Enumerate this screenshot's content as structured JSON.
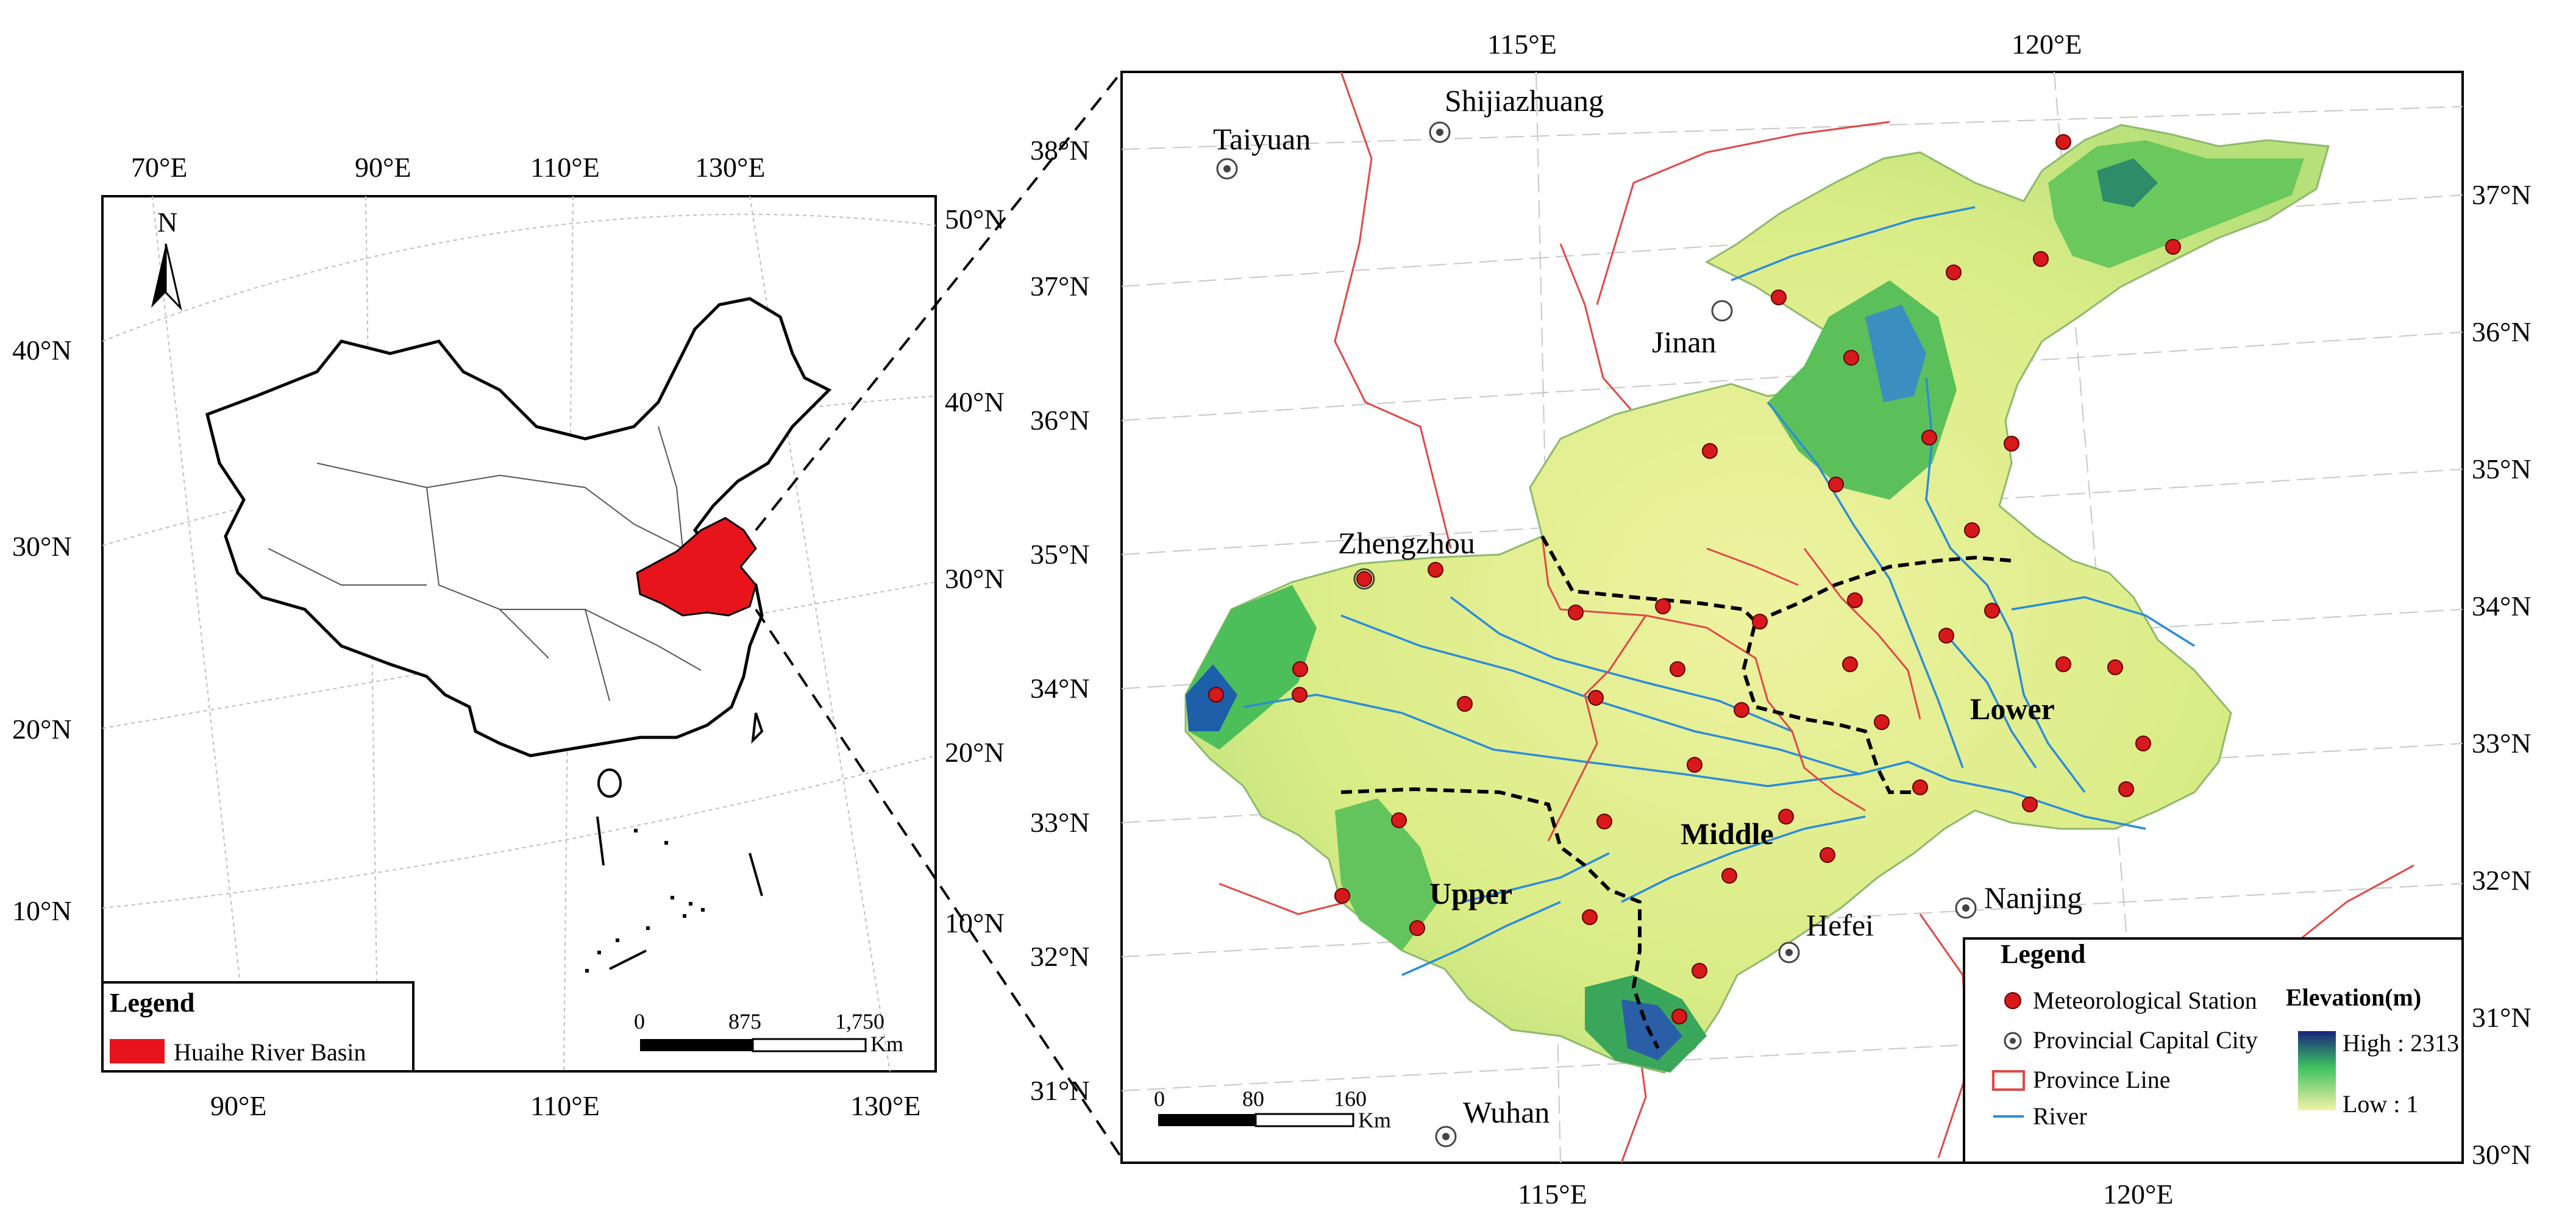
{
  "left_map": {
    "top_lon_labels": [
      "70°E",
      "90°E",
      "110°E",
      "130°E"
    ],
    "bottom_lon_labels": [
      "90°E",
      "110°E",
      "130°E"
    ],
    "left_lat_labels": [
      "40°N",
      "30°N",
      "20°N",
      "10°N"
    ],
    "right_lat_labels": [
      "50°N",
      "40°N",
      "30°N",
      "20°N",
      "10°N"
    ],
    "north_label": "N",
    "legend": {
      "title": "Legend",
      "item": "Huaihe River Basin",
      "item_color": "#e8141c"
    },
    "scale": {
      "ticks": [
        "0",
        "875",
        "1,750"
      ],
      "unit": "Km"
    }
  },
  "right_map": {
    "top_lon_labels": [
      "115°E",
      "120°E"
    ],
    "bottom_lon_labels": [
      "115°E",
      "120°E"
    ],
    "left_lat_labels": [
      "38°N",
      "37°N",
      "36°N",
      "35°N",
      "34°N",
      "33°N",
      "32°N",
      "31°N"
    ],
    "right_lat_labels": [
      "37°N",
      "36°N",
      "35°N",
      "34°N",
      "33°N",
      "32°N",
      "31°N",
      "30°N"
    ],
    "cities": [
      "Taiyuan",
      "Shijiazhuang",
      "Jinan",
      "Zhengzhou",
      "Hefei",
      "Nanjing",
      "Wuhan"
    ],
    "regions": [
      "Upper",
      "Middle",
      "Lower"
    ],
    "legend": {
      "title": "Legend",
      "items": [
        "Meteorological Station",
        "Provincial Capital City",
        "Province Line",
        "River"
      ],
      "elevation_title": "Elevation(m)",
      "elevation_high": "High : 2313",
      "elevation_low": "Low : 1"
    },
    "scale": {
      "ticks": [
        "0",
        "80",
        "160"
      ],
      "unit": "Km"
    },
    "colors": {
      "station": "#d7191c",
      "province_line": "#e04848",
      "river": "#2b8cd8",
      "high": "#1a237e",
      "mid": "#3cc060",
      "low": "#f2f2a6"
    }
  }
}
